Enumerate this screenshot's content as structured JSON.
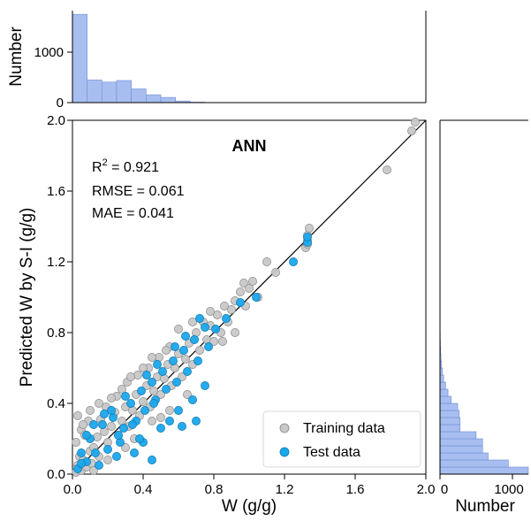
{
  "chart_data": [
    {
      "type": "scatter",
      "title": "ANN",
      "xlabel": "W (g/g)",
      "ylabel": "Predicted W by S-I (g/g)",
      "xlim": [
        0.0,
        2.0
      ],
      "ylim": [
        0.0,
        2.0
      ],
      "x_ticks": [
        "0.0",
        "0.4",
        "0.8",
        "1.2",
        "1.6",
        "2.0"
      ],
      "y_ticks": [
        "0.0",
        "0.4",
        "0.8",
        "1.2",
        "1.6",
        "2.0"
      ],
      "grid": false,
      "legend_position": "bottom-right",
      "annotations": {
        "r2_label": "R",
        "r2_sup": "2",
        "r2_value": " = 0.921",
        "rmse": "RMSE = 0.061",
        "mae": "MAE = 0.041"
      },
      "reference_line": {
        "x": [
          0.0,
          2.0
        ],
        "y": [
          0.0,
          2.0
        ],
        "color": "#000000"
      },
      "series": [
        {
          "name": "Training data",
          "color": "#c8c8c8",
          "points": [
            [
              0.02,
              0.01
            ],
            [
              0.03,
              0.05
            ],
            [
              0.05,
              0.02
            ],
            [
              0.04,
              0.1
            ],
            [
              0.06,
              0.08
            ],
            [
              0.08,
              0.04
            ],
            [
              0.1,
              0.13
            ],
            [
              0.02,
              0.18
            ],
            [
              0.05,
              0.25
            ],
            [
              0.03,
              0.33
            ],
            [
              0.07,
              0.22
            ],
            [
              0.09,
              0.3
            ],
            [
              0.12,
              0.15
            ],
            [
              0.14,
              0.21
            ],
            [
              0.15,
              0.1
            ],
            [
              0.11,
              0.06
            ],
            [
              0.18,
              0.24
            ],
            [
              0.16,
              0.31
            ],
            [
              0.2,
              0.18
            ],
            [
              0.22,
              0.27
            ],
            [
              0.24,
              0.35
            ],
            [
              0.19,
              0.38
            ],
            [
              0.26,
              0.22
            ],
            [
              0.28,
              0.3
            ],
            [
              0.3,
              0.38
            ],
            [
              0.25,
              0.44
            ],
            [
              0.32,
              0.27
            ],
            [
              0.34,
              0.36
            ],
            [
              0.36,
              0.45
            ],
            [
              0.31,
              0.52
            ],
            [
              0.38,
              0.33
            ],
            [
              0.4,
              0.41
            ],
            [
              0.42,
              0.5
            ],
            [
              0.37,
              0.56
            ],
            [
              0.44,
              0.38
            ],
            [
              0.46,
              0.47
            ],
            [
              0.48,
              0.55
            ],
            [
              0.43,
              0.6
            ],
            [
              0.5,
              0.45
            ],
            [
              0.52,
              0.54
            ],
            [
              0.54,
              0.62
            ],
            [
              0.49,
              0.66
            ],
            [
              0.56,
              0.5
            ],
            [
              0.58,
              0.6
            ],
            [
              0.6,
              0.68
            ],
            [
              0.55,
              0.72
            ],
            [
              0.62,
              0.55
            ],
            [
              0.64,
              0.65
            ],
            [
              0.66,
              0.74
            ],
            [
              0.68,
              0.62
            ],
            [
              0.7,
              0.8
            ],
            [
              0.72,
              0.7
            ],
            [
              0.74,
              0.86
            ],
            [
              0.76,
              0.76
            ],
            [
              0.78,
              0.84
            ],
            [
              0.8,
              0.75
            ],
            [
              0.82,
              0.9
            ],
            [
              0.84,
              0.8
            ],
            [
              0.86,
              0.95
            ],
            [
              0.88,
              0.86
            ],
            [
              0.9,
              0.93
            ],
            [
              0.92,
              0.98
            ],
            [
              0.95,
              1.03
            ],
            [
              0.97,
              1.08
            ],
            [
              1.0,
              1.05
            ],
            [
              1.02,
              1.09
            ],
            [
              0.98,
              0.95
            ],
            [
              1.05,
              1.0
            ],
            [
              1.1,
              1.2
            ],
            [
              1.15,
              1.14
            ],
            [
              0.85,
              0.75
            ],
            [
              0.92,
              0.8
            ],
            [
              0.78,
              0.92
            ],
            [
              0.68,
              0.86
            ],
            [
              0.6,
              0.82
            ],
            [
              0.53,
              0.7
            ],
            [
              0.45,
              0.66
            ],
            [
              0.4,
              0.6
            ],
            [
              0.33,
              0.55
            ],
            [
              0.28,
              0.48
            ],
            [
              0.22,
              0.43
            ],
            [
              0.15,
              0.4
            ],
            [
              0.1,
              0.36
            ],
            [
              0.06,
              0.28
            ],
            [
              0.35,
              0.2
            ],
            [
              0.45,
              0.3
            ],
            [
              0.55,
              0.36
            ],
            [
              0.65,
              0.45
            ],
            [
              0.3,
              0.15
            ],
            [
              0.5,
              0.32
            ],
            [
              1.32,
              1.28
            ],
            [
              1.33,
              1.32
            ],
            [
              1.33,
              1.35
            ],
            [
              1.34,
              1.39
            ],
            [
              1.33,
              1.3
            ],
            [
              1.78,
              1.72
            ],
            [
              1.92,
              1.94
            ],
            [
              1.94,
              1.99
            ],
            [
              0.12,
              0.02
            ],
            [
              0.2,
              0.08
            ]
          ]
        },
        {
          "name": "Test data",
          "color": "#1aa7ec",
          "points": [
            [
              0.03,
              0.03
            ],
            [
              0.05,
              0.12
            ],
            [
              0.08,
              0.07
            ],
            [
              0.1,
              0.2
            ],
            [
              0.13,
              0.12
            ],
            [
              0.17,
              0.28
            ],
            [
              0.2,
              0.14
            ],
            [
              0.23,
              0.32
            ],
            [
              0.27,
              0.18
            ],
            [
              0.29,
              0.26
            ],
            [
              0.33,
              0.4
            ],
            [
              0.36,
              0.3
            ],
            [
              0.39,
              0.47
            ],
            [
              0.41,
              0.36
            ],
            [
              0.45,
              0.52
            ],
            [
              0.47,
              0.42
            ],
            [
              0.51,
              0.58
            ],
            [
              0.53,
              0.48
            ],
            [
              0.57,
              0.64
            ],
            [
              0.59,
              0.52
            ],
            [
              0.63,
              0.7
            ],
            [
              0.65,
              0.58
            ],
            [
              0.69,
              0.76
            ],
            [
              0.71,
              0.64
            ],
            [
              0.75,
              0.83
            ],
            [
              0.77,
              0.72
            ],
            [
              0.81,
              0.82
            ],
            [
              0.87,
              0.88
            ],
            [
              0.95,
              0.97
            ],
            [
              1.04,
              1.0
            ],
            [
              0.4,
              0.18
            ],
            [
              0.5,
              0.26
            ],
            [
              0.6,
              0.36
            ],
            [
              0.68,
              0.42
            ],
            [
              0.75,
              0.5
            ],
            [
              0.25,
              0.1
            ],
            [
              0.15,
              0.05
            ],
            [
              0.35,
              0.12
            ],
            [
              0.55,
              0.3
            ],
            [
              0.22,
              0.36
            ],
            [
              0.3,
              0.44
            ],
            [
              0.42,
              0.56
            ],
            [
              0.48,
              0.62
            ],
            [
              0.58,
              0.72
            ],
            [
              0.64,
              0.78
            ],
            [
              0.72,
              0.88
            ],
            [
              0.18,
              0.34
            ],
            [
              0.08,
              0.22
            ],
            [
              1.33,
              1.31
            ],
            [
              1.33,
              1.34
            ],
            [
              1.25,
              1.2
            ],
            [
              0.62,
              0.27
            ],
            [
              0.7,
              0.3
            ],
            [
              0.45,
              0.08
            ],
            [
              0.38,
              0.2
            ],
            [
              0.12,
              0.28
            ],
            [
              0.05,
              0.06
            ],
            [
              0.26,
              0.22
            ],
            [
              0.34,
              0.28
            ],
            [
              0.46,
              0.4
            ]
          ]
        }
      ]
    },
    {
      "type": "bar",
      "orientation": "vertical",
      "ylabel": "Number",
      "y_ticks": [
        "0",
        "1000"
      ],
      "ylim": [
        0,
        1750
      ],
      "xlim": [
        0.0,
        2.0
      ],
      "color": "#a8bef0",
      "bin_width": 0.0833,
      "values": [
        1680,
        430,
        390,
        420,
        260,
        150,
        100,
        30,
        8,
        4,
        3,
        2,
        1,
        1,
        2,
        0,
        0,
        0,
        0,
        0,
        1,
        1,
        1,
        1
      ]
    },
    {
      "type": "bar",
      "orientation": "horizontal",
      "xlabel": "Number",
      "x_ticks": [
        "0",
        "1000"
      ],
      "xlim": [
        0,
        1100
      ],
      "ylim": [
        0.0,
        2.0
      ],
      "color": "#a8bef0",
      "bin_width": 0.04,
      "values": [
        1100,
        850,
        600,
        530,
        530,
        450,
        250,
        250,
        240,
        220,
        140,
        100,
        70,
        45,
        30,
        20,
        12,
        8,
        5,
        3,
        2,
        1,
        1,
        1,
        1
      ]
    }
  ]
}
